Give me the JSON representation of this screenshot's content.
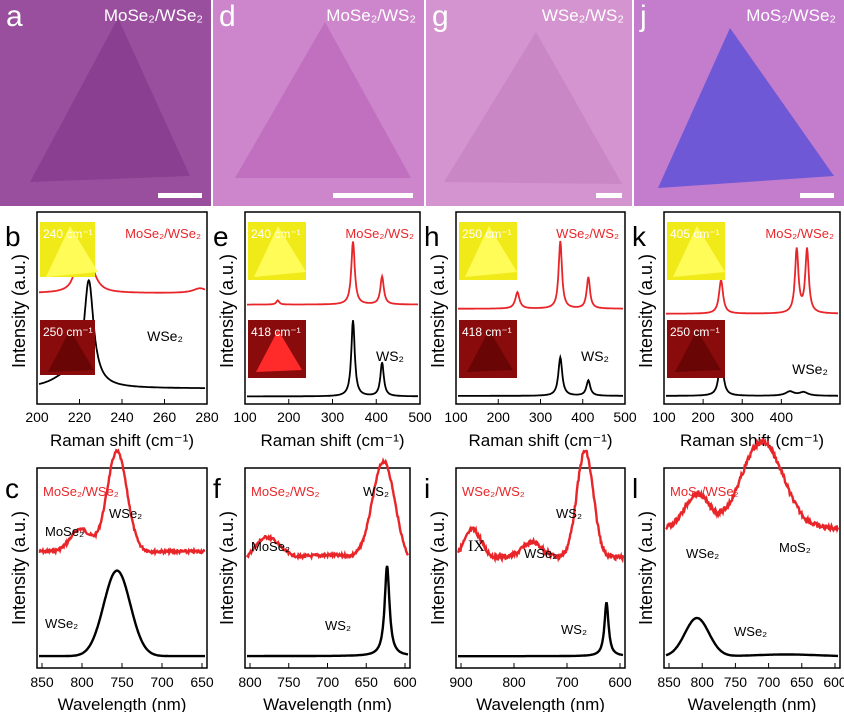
{
  "figure": {
    "panels": [
      {
        "letter": "a",
        "title": "MoSe₂/WSe₂",
        "bg": "#9a4f9e",
        "tri": "#8c4292"
      },
      {
        "letter": "d",
        "title": "MoSe₂/WS₂",
        "bg": "#cd86cb",
        "tri": "#c173bf"
      },
      {
        "letter": "g",
        "title": "WSe₂/WS₂",
        "bg": "#d494cf",
        "tri": "#c987c6"
      },
      {
        "letter": "j",
        "title": "MoS₂/WSe₂",
        "bg": "#c47ccd",
        "tri": "#6f5ad8"
      }
    ],
    "raman": [
      {
        "letter": "b",
        "top": "MoSe₂/WSe₂",
        "bottom": "WSe₂",
        "inset_top": "240 cm⁻¹",
        "inset_bottom": "250 cm⁻¹",
        "ticks": [
          "200",
          "220",
          "240",
          "260",
          "280"
        ]
      },
      {
        "letter": "e",
        "top": "MoSe₂/WS₂",
        "bottom": "WS₂",
        "inset_top": "240 cm⁻¹",
        "inset_bottom": "418 cm⁻¹",
        "ticks": [
          "100",
          "200",
          "300",
          "400",
          "500"
        ]
      },
      {
        "letter": "h",
        "top": "WSe₂/WS₂",
        "bottom": "WS₂",
        "inset_top": "250 cm⁻¹",
        "inset_bottom": "418 cm⁻¹",
        "ticks": [
          "100",
          "200",
          "300",
          "400",
          "500"
        ]
      },
      {
        "letter": "k",
        "top": "MoS₂/WSe₂",
        "bottom": "WSe₂",
        "inset_top": "405 cm⁻¹",
        "inset_bottom": "250 cm⁻¹",
        "ticks": [
          "100",
          "200",
          "300",
          "400"
        ]
      }
    ],
    "pl": [
      {
        "letter": "c",
        "title": "MoSe₂/WSe₂",
        "peak1": "MoSe₂",
        "peak2": "WSe₂",
        "bottom": "WSe₂",
        "ticks": [
          "850",
          "800",
          "750",
          "700",
          "650"
        ]
      },
      {
        "letter": "f",
        "title": "MoSe₂/WS₂",
        "peak1": "MoSe₂",
        "peak2": "WS₂",
        "bottom": "WS₂",
        "ticks": [
          "800",
          "750",
          "700",
          "650",
          "600"
        ]
      },
      {
        "letter": "i",
        "title": "WSe₂/WS₂",
        "peak0": "IX",
        "peak1": "WSe₂",
        "peak2": "WS₂",
        "bottom": "WS₂",
        "ticks": [
          "900",
          "800",
          "700",
          "600"
        ]
      },
      {
        "letter": "l",
        "title": "MoS₂/WSe₂",
        "peak1": "WSe₂",
        "peak2": "MoS₂",
        "bottom": "WSe₂",
        "ticks": [
          "850",
          "800",
          "750",
          "700",
          "650",
          "600"
        ]
      }
    ],
    "ylabel": "Intensity (a.u.)",
    "xlabel_raman": "Raman shift (cm⁻¹)",
    "xlabel_pl": "Wavelength (nm)",
    "colors": {
      "red": "#e8262a",
      "black": "#000000"
    }
  }
}
